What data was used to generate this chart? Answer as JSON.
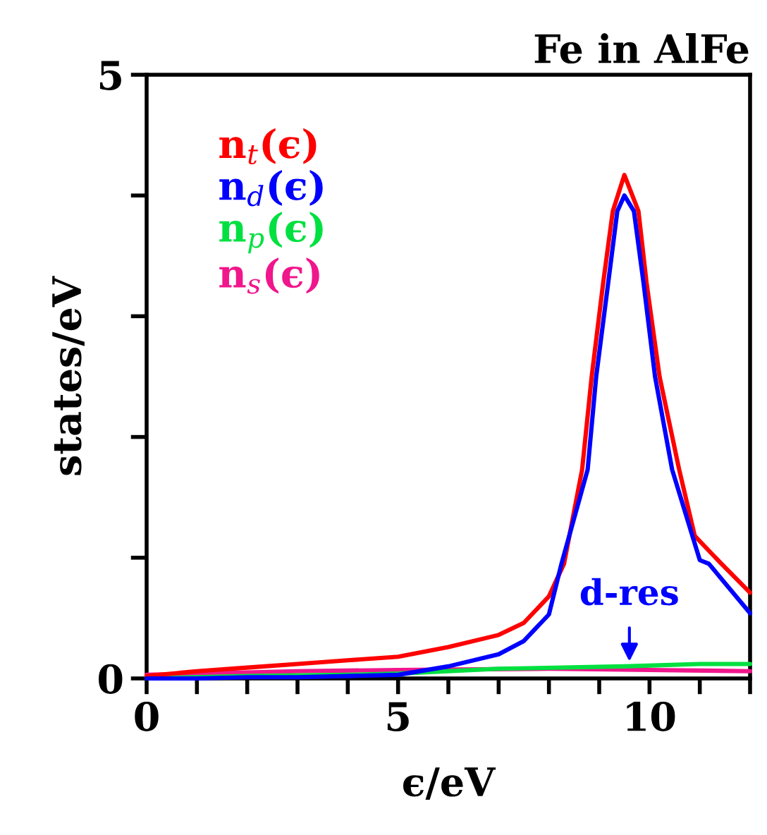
{
  "chart_data": {
    "type": "line",
    "title": "Fe in AlFe",
    "xlabel": "ϵ/eV",
    "ylabel": "states/eV",
    "xlim": [
      0,
      12
    ],
    "ylim": [
      0,
      5
    ],
    "xticks": [
      0,
      {
        "value": 1,
        "label": null
      },
      {
        "value": 2,
        "label": null
      },
      {
        "value": 3,
        "label": null
      },
      {
        "value": 4,
        "label": null
      },
      5,
      {
        "value": 6,
        "label": null
      },
      {
        "value": 7,
        "label": null
      },
      {
        "value": 8,
        "label": null
      },
      {
        "value": 9,
        "label": null
      },
      10,
      {
        "value": 11,
        "label": null
      },
      {
        "value": 12,
        "label": null
      }
    ],
    "yticks": [
      0,
      {
        "value": 1,
        "label": null
      },
      {
        "value": 2,
        "label": null
      },
      {
        "value": 3,
        "label": null
      },
      {
        "value": 4,
        "label": null
      },
      5
    ],
    "grid": false,
    "legend": "top left",
    "line_style": "solid",
    "marker": "none",
    "annotations": [
      {
        "text": "d-res",
        "x": 9.6,
        "y": 0.14
      }
    ],
    "series": [
      {
        "name": "n$_{t}$(ϵ)",
        "color": "#ff0000",
        "x": [
          0,
          1,
          2,
          3,
          4,
          5,
          6,
          7,
          7.5,
          8,
          8.3,
          8.66,
          8.85,
          9.08,
          9.27,
          9.5,
          9.78,
          9.94,
          10.2,
          10.59,
          10.9,
          11.43,
          12
        ],
        "values": [
          0.02,
          0.06,
          0.09,
          0.12,
          0.15,
          0.18,
          0.26,
          0.36,
          0.46,
          0.68,
          0.95,
          1.73,
          2.5,
          3.28,
          3.87,
          4.17,
          3.87,
          3.28,
          2.5,
          1.73,
          1.18,
          0.95,
          0.71
        ]
      },
      {
        "name": "n$_{d}$(ϵ)",
        "color": "#0000ff",
        "x": [
          0,
          1,
          2,
          3,
          4,
          5,
          6,
          7,
          7.5,
          8,
          8.25,
          8.77,
          8.94,
          9.18,
          9.36,
          9.5,
          9.69,
          9.88,
          10.11,
          10.45,
          11,
          11.18,
          12
        ],
        "values": [
          0,
          0.0,
          0.01,
          0.01,
          0.02,
          0.03,
          0.1,
          0.2,
          0.31,
          0.53,
          0.95,
          1.73,
          2.5,
          3.28,
          3.87,
          4.0,
          3.87,
          3.28,
          2.5,
          1.73,
          0.98,
          0.95,
          0.54
        ]
      },
      {
        "name": "n$_{p}$(ϵ)",
        "color": "#00e040",
        "x": [
          0,
          2,
          4,
          5,
          7,
          9.5,
          11,
          12
        ],
        "values": [
          0,
          0.02,
          0.03,
          0.04,
          0.08,
          0.1,
          0.12,
          0.12
        ]
      },
      {
        "name": "n$_{s}$(ϵ)",
        "color": "#f0168c",
        "x": [
          0,
          3,
          5,
          8,
          10,
          12
        ],
        "values": [
          0.03,
          0.06,
          0.07,
          0.08,
          0.07,
          0.06
        ]
      }
    ]
  }
}
